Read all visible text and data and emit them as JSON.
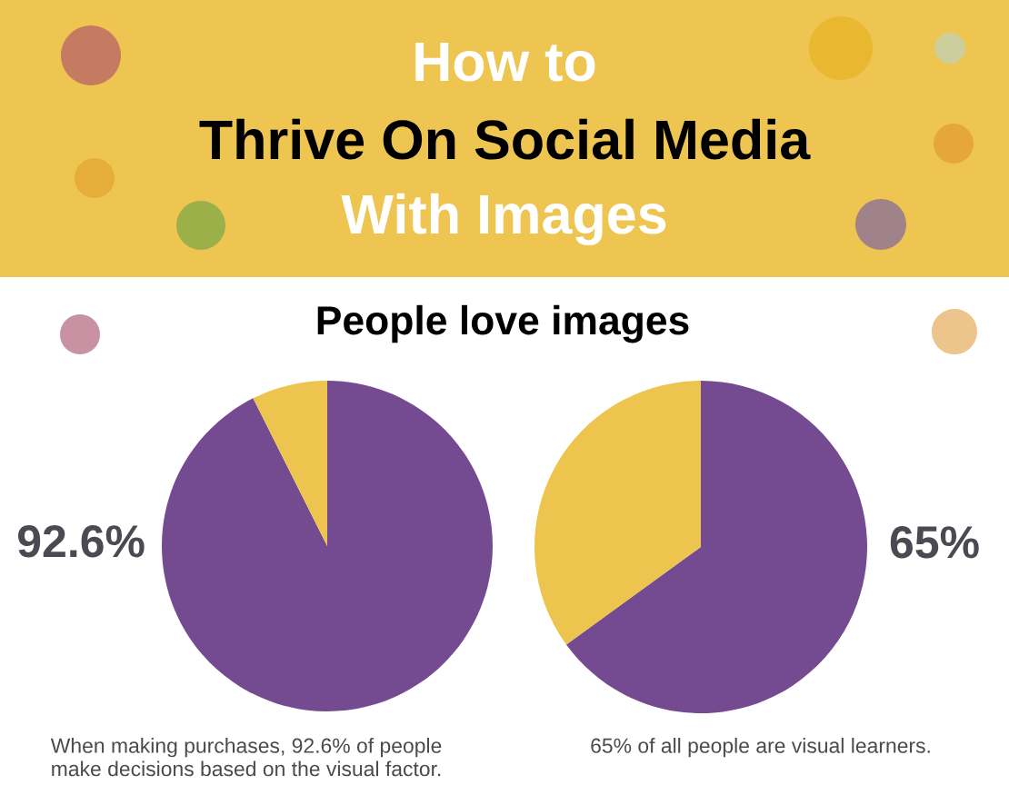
{
  "chart_data": [
    {
      "type": "pie",
      "title": "How to\nThrive On Social Media\nWith Images",
      "subtitle": "People love images",
      "categories": [
        null,
        null
      ],
      "values": [
        92.6,
        7.4
      ],
      "colors": [
        "#744a91",
        "#ecc44e"
      ],
      "value_labels": [
        "92.6%",
        null
      ],
      "annotations": [
        "When making purchases, 92.6% of people\nmake decisions based on the visual factor."
      ]
    },
    {
      "type": "pie",
      "categories": [
        null,
        null
      ],
      "values": [
        65,
        35
      ],
      "colors": [
        "#744a91",
        "#ecc44e"
      ],
      "value_labels": [
        "65%",
        null
      ],
      "annotations": [
        "65% of all people are visual learners."
      ]
    }
  ]
}
